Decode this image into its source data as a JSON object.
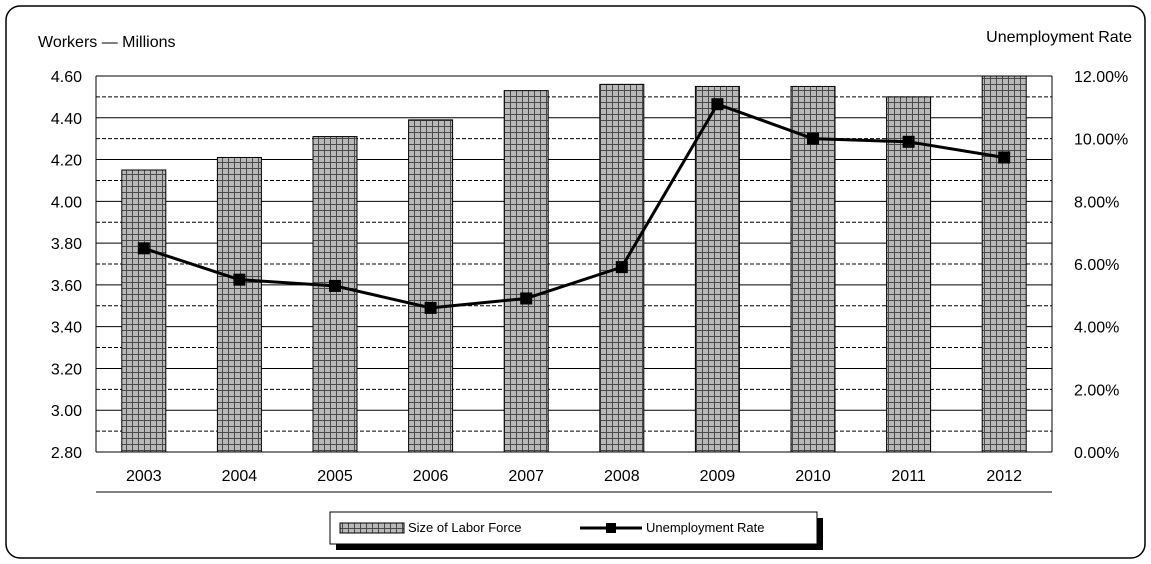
{
  "chart_data": {
    "type": "bar",
    "categories": [
      "2003",
      "2004",
      "2005",
      "2006",
      "2007",
      "2008",
      "2009",
      "2010",
      "2011",
      "2012"
    ],
    "series": [
      {
        "name": "Size of Labor Force",
        "type": "bar",
        "axis": "left",
        "values": [
          4.15,
          4.21,
          4.31,
          4.39,
          4.53,
          4.56,
          4.55,
          4.55,
          4.5,
          4.6
        ]
      },
      {
        "name": "Unemployment Rate",
        "type": "line",
        "axis": "right",
        "values": [
          6.5,
          5.5,
          5.3,
          4.6,
          4.9,
          5.9,
          11.1,
          10.0,
          9.9,
          9.4
        ]
      }
    ],
    "ylabel_left": "Workers — Millions",
    "ylabel_right": "Unemployment Rate",
    "ylim_left": [
      2.8,
      4.6
    ],
    "ylim_right": [
      0,
      12
    ],
    "left_ticks": [
      "2.80",
      "3.00",
      "3.20",
      "3.40",
      "3.60",
      "3.80",
      "4.00",
      "4.20",
      "4.40",
      "4.60"
    ],
    "right_ticks": [
      "0.00%",
      "2.00%",
      "4.00%",
      "6.00%",
      "8.00%",
      "10.00%",
      "12.00%"
    ],
    "grid": true,
    "legend_position": "bottom-center",
    "colors": {
      "bar_fill": "#b8b8b8",
      "bar_grid": "#4a4a4a",
      "line": "#000000"
    }
  }
}
